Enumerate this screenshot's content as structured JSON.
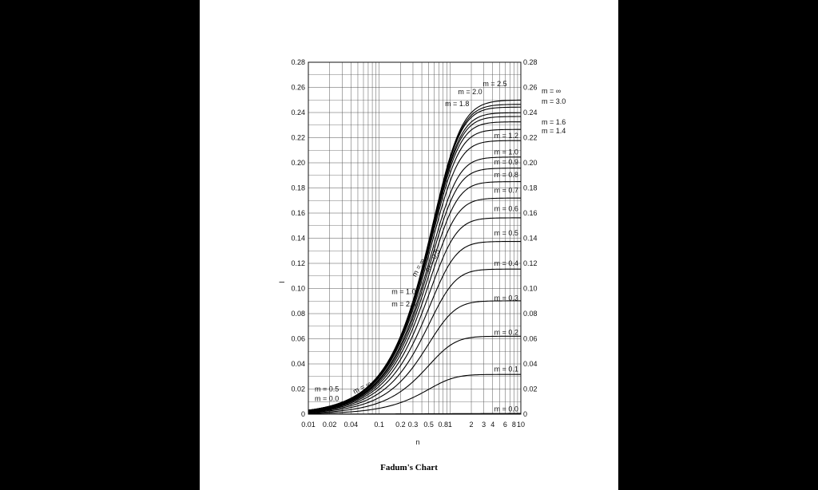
{
  "caption": "Fadum's Chart",
  "chart_data": {
    "type": "line",
    "title": "",
    "xlabel": "n",
    "ylabel": "I",
    "x_scale": "log",
    "xlim": [
      0.01,
      10
    ],
    "ylim": [
      0,
      0.28
    ],
    "grid": true,
    "x_ticks": [
      {
        "v": 0.01,
        "t": "0.01"
      },
      {
        "v": 0.02,
        "t": "0.02"
      },
      {
        "v": 0.04,
        "t": "0.04"
      },
      {
        "v": 0.1,
        "t": "0.1"
      },
      {
        "v": 0.2,
        "t": "0.2"
      },
      {
        "v": 0.3,
        "t": "0.3"
      },
      {
        "v": 0.5,
        "t": "0.5"
      },
      {
        "v": 0.8,
        "t": "0.8"
      },
      {
        "v": 1,
        "t": "1"
      },
      {
        "v": 2,
        "t": "2"
      },
      {
        "v": 3,
        "t": "3"
      },
      {
        "v": 4,
        "t": "4"
      },
      {
        "v": 6,
        "t": "6"
      },
      {
        "v": 8,
        "t": "8"
      },
      {
        "v": 10,
        "t": "10"
      }
    ],
    "y_ticks": [
      {
        "v": 0,
        "t": "0"
      },
      {
        "v": 0.02,
        "t": "0.02"
      },
      {
        "v": 0.04,
        "t": "0.04"
      },
      {
        "v": 0.06,
        "t": "0.06"
      },
      {
        "v": 0.08,
        "t": "0.08"
      },
      {
        "v": 0.1,
        "t": "0.10"
      },
      {
        "v": 0.12,
        "t": "0.12"
      },
      {
        "v": 0.14,
        "t": "0.14"
      },
      {
        "v": 0.16,
        "t": "0.16"
      },
      {
        "v": 0.18,
        "t": "0.18"
      },
      {
        "v": 0.2,
        "t": "0.20"
      },
      {
        "v": 0.22,
        "t": "0.22"
      },
      {
        "v": 0.24,
        "t": "0.24"
      },
      {
        "v": 0.26,
        "t": "0.26"
      },
      {
        "v": 0.28,
        "t": "0.28"
      }
    ],
    "series": [
      {
        "name": "m = ∞",
        "m": 100,
        "plateau": 0.25
      },
      {
        "name": "m = 3.0",
        "m": 3.0,
        "plateau": 0.247
      },
      {
        "name": "m = 2.5",
        "m": 2.5,
        "plateau": 0.245
      },
      {
        "name": "m = 2.0",
        "m": 2.0,
        "plateau": 0.24
      },
      {
        "name": "m = 1.8",
        "m": 1.8,
        "plateau": 0.237
      },
      {
        "name": "m = 1.6",
        "m": 1.6,
        "plateau": 0.233
      },
      {
        "name": "m = 1.4",
        "m": 1.4,
        "plateau": 0.226
      },
      {
        "name": "m = 1.2",
        "m": 1.2,
        "plateau": 0.216
      },
      {
        "name": "m = 1.0",
        "m": 1.0,
        "plateau": 0.205
      },
      {
        "name": "m = 0.9",
        "m": 0.9,
        "plateau": 0.196
      },
      {
        "name": "m = 0.8",
        "m": 0.8,
        "plateau": 0.186
      },
      {
        "name": "m = 0.7",
        "m": 0.7,
        "plateau": 0.174
      },
      {
        "name": "m = 0.6",
        "m": 0.6,
        "plateau": 0.159
      },
      {
        "name": "m = 0.5",
        "m": 0.5,
        "plateau": 0.14
      },
      {
        "name": "m = 0.4",
        "m": 0.4,
        "plateau": 0.116
      },
      {
        "name": "m = 0.3",
        "m": 0.3,
        "plateau": 0.09
      },
      {
        "name": "m = 0.2",
        "m": 0.2,
        "plateau": 0.062
      },
      {
        "name": "m = 0.1",
        "m": 0.1,
        "plateau": 0.032
      },
      {
        "name": "m = 0.0",
        "m": 0.0,
        "plateau": 0.0
      }
    ],
    "right_labels": [
      {
        "text": "m = 2.5",
        "y": 0.263
      },
      {
        "text": "m = 2.0",
        "y": 0.2565
      },
      {
        "text": "m = 1.8",
        "y": 0.247
      },
      {
        "text": "m = ∞",
        "y": 0.257
      },
      {
        "text": "m = 3.0",
        "y": 0.249
      },
      {
        "text": "m = 1.6",
        "y": 0.2325
      },
      {
        "text": "m = 1.4",
        "y": 0.2255
      },
      {
        "text": "m = 1.2",
        "y": 0.2215
      },
      {
        "text": "m = 1.0",
        "y": 0.2085
      },
      {
        "text": "m = 0.9",
        "y": 0.2005
      },
      {
        "text": "m = 0.8",
        "y": 0.1905
      },
      {
        "text": "m = 0.7",
        "y": 0.178
      },
      {
        "text": "m = 0.6",
        "y": 0.1635
      },
      {
        "text": "m = 0.5",
        "y": 0.144
      },
      {
        "text": "m = 0.4",
        "y": 0.12
      },
      {
        "text": "m = 0.3",
        "y": 0.0925
      },
      {
        "text": "m = 0.2",
        "y": 0.065
      },
      {
        "text": "m = 0.1",
        "y": 0.036
      },
      {
        "text": "m = 0.0",
        "y": 0.004
      }
    ],
    "left_labels": [
      {
        "text": "m = 1.0",
        "y": 0.0975
      },
      {
        "text": "m = 2.0",
        "y": 0.0875
      },
      {
        "text": "m = 0.5",
        "y": 0.02
      },
      {
        "text": "m = 0.0",
        "y": 0.0125
      }
    ],
    "curve_labels": [
      {
        "text": "m = ∞"
      },
      {
        "text": "m = 0.5"
      }
    ]
  }
}
